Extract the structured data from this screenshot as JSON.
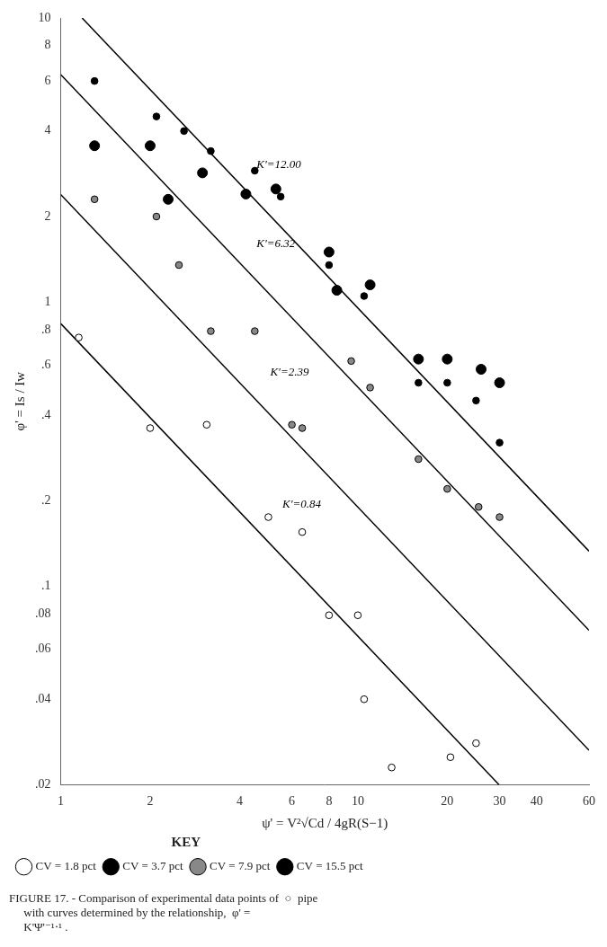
{
  "chart_data": {
    "type": "scatter",
    "log": true,
    "grid": false,
    "legend": "lower left",
    "legend_title": "KEY",
    "x_label": "ψ' = V²√Cd / 4gR(S−1)",
    "y_label": "φ' = Is / Iw",
    "subtitle": [
      "FIGURE 17. - Comparison of experimental data points of  ○  pipe",
      "     with curves determined by the relationship,  φ' =",
      "     K'Ψ'⁻¹⋅¹ ."
    ],
    "xlim": [
      1,
      60
    ],
    "ylim": [
      0.02,
      10
    ],
    "xticks": [
      1,
      2,
      4,
      6,
      8,
      10,
      20,
      30,
      40,
      60
    ],
    "yticks": [
      {
        "value": 0.02,
        "label": ".02"
      },
      {
        "value": 0.04,
        "label": ".04"
      },
      {
        "value": 0.06,
        "label": ".06"
      },
      {
        "value": 0.08,
        "label": ".08"
      },
      {
        "value": 0.1,
        "label": ".1"
      },
      {
        "value": 0.2,
        "label": ".2"
      },
      {
        "value": 0.4,
        "label": ".4"
      },
      {
        "value": 0.6,
        "label": ".6"
      },
      {
        "value": 0.8,
        "label": ".8"
      },
      1,
      2,
      4,
      6,
      8,
      10
    ],
    "lines": [
      {
        "type": "line",
        "color": "#000000",
        "x": [
          1.18029,
          60
        ],
        "values": [
          10,
          0.132805
        ]
      },
      {
        "type": "line",
        "color": "#000000",
        "x": [
          1,
          60
        ],
        "values": [
          6.32,
          0.069944
        ]
      },
      {
        "type": "line",
        "color": "#000000",
        "x": [
          1,
          60
        ],
        "values": [
          2.39,
          0.02645
        ]
      },
      {
        "type": "line",
        "color": "#000000",
        "x": [
          1,
          29.899
        ],
        "values": [
          0.84,
          0.02
        ]
      }
    ],
    "annotations": [
      {
        "text": "K'=12.00",
        "x": 4.5,
        "y": 2.9
      },
      {
        "text": "K'=6.32",
        "x": 4.5,
        "y": 1.53
      },
      {
        "text": "K'=2.39",
        "x": 5.0,
        "y": 0.54
      },
      {
        "text": "K'=0.84",
        "x": 5.5,
        "y": 0.185
      }
    ],
    "series": [
      {
        "name": "CV = 1.8 pct",
        "color": "white",
        "x": [
          1.15,
          2.0,
          3.1,
          5.0,
          6.5,
          8.0,
          10.0,
          10.5,
          13.0,
          20.5,
          25.0
        ],
        "values": [
          0.75,
          0.36,
          0.37,
          0.175,
          0.155,
          0.079,
          0.079,
          0.04,
          0.023,
          0.025,
          0.028
        ]
      },
      {
        "name": "CV = 3.7 pct",
        "color": "black",
        "x": [
          1.3,
          2.1,
          2.6,
          3.2,
          4.5,
          5.5,
          8.0,
          10.5,
          16.0,
          20.0,
          25.0,
          30.0
        ],
        "values": [
          6.0,
          4.5,
          4.0,
          3.4,
          2.9,
          2.35,
          1.35,
          1.05,
          0.52,
          0.52,
          0.45,
          0.32
        ]
      },
      {
        "name": "CV = 7.9 pct",
        "color": "#888888",
        "x": [
          1.3,
          2.1,
          2.5,
          3.2,
          4.5,
          6.0,
          6.5,
          9.5,
          11.0,
          16.0,
          20.0,
          25.5,
          30.0
        ],
        "values": [
          2.3,
          2.0,
          1.35,
          0.79,
          0.79,
          0.37,
          0.36,
          0.62,
          0.5,
          0.28,
          0.22,
          0.19,
          0.175
        ]
      },
      {
        "name": "CV = 15.5 pct",
        "color": "black",
        "x": [
          1.3,
          2.0,
          2.3,
          3.0,
          4.2,
          5.3,
          8.0,
          8.5,
          11.0,
          16.0,
          20.0,
          26.0,
          30.0
        ],
        "values": [
          3.55,
          3.55,
          2.3,
          2.85,
          2.4,
          2.5,
          1.5,
          1.1,
          1.15,
          0.63,
          0.63,
          0.58,
          0.52
        ]
      }
    ]
  }
}
